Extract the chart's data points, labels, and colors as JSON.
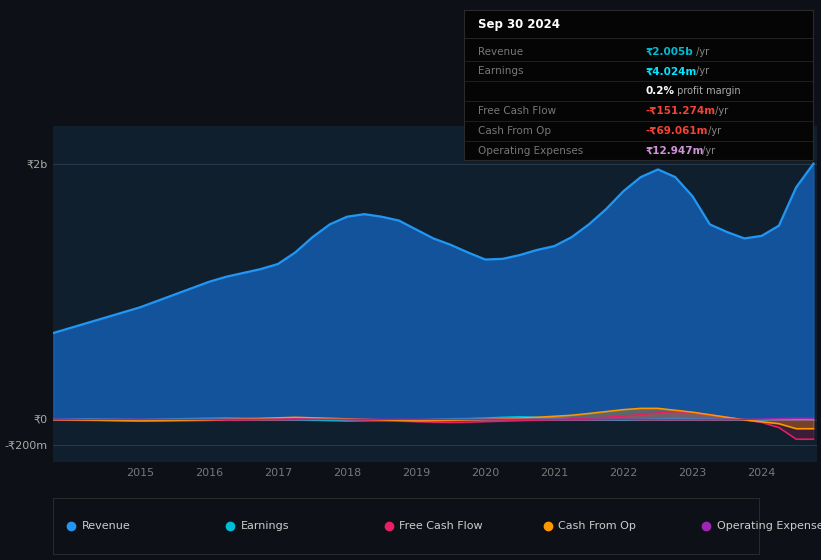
{
  "bg_color": "#0d1117",
  "plot_bg_color": "#0f1f2e",
  "years": [
    2013.75,
    2014.0,
    2014.25,
    2014.5,
    2014.75,
    2015.0,
    2015.25,
    2015.5,
    2015.75,
    2016.0,
    2016.25,
    2016.5,
    2016.75,
    2017.0,
    2017.25,
    2017.5,
    2017.75,
    2018.0,
    2018.25,
    2018.5,
    2018.75,
    2019.0,
    2019.25,
    2019.5,
    2019.75,
    2020.0,
    2020.25,
    2020.5,
    2020.75,
    2021.0,
    2021.25,
    2021.5,
    2021.75,
    2022.0,
    2022.25,
    2022.5,
    2022.75,
    2023.0,
    2023.25,
    2023.5,
    2023.75,
    2024.0,
    2024.25,
    2024.5,
    2024.75
  ],
  "revenue": [
    680,
    720,
    760,
    800,
    840,
    880,
    930,
    980,
    1030,
    1080,
    1120,
    1150,
    1180,
    1220,
    1310,
    1430,
    1530,
    1590,
    1610,
    1590,
    1560,
    1490,
    1420,
    1370,
    1310,
    1255,
    1260,
    1290,
    1330,
    1360,
    1430,
    1530,
    1650,
    1790,
    1900,
    1960,
    1900,
    1750,
    1530,
    1470,
    1420,
    1440,
    1520,
    1820,
    2005
  ],
  "earnings": [
    0,
    5,
    8,
    6,
    4,
    2,
    5,
    8,
    10,
    12,
    14,
    12,
    8,
    5,
    2,
    -2,
    -5,
    -8,
    -6,
    -4,
    -2,
    0,
    4,
    8,
    10,
    14,
    20,
    25,
    20,
    15,
    8,
    4,
    2,
    0,
    4,
    8,
    10,
    8,
    6,
    4,
    2,
    0,
    4.024,
    4.024,
    4.024
  ],
  "free_cash_flow": [
    0,
    0,
    -2,
    -4,
    -6,
    -8,
    -10,
    -8,
    -6,
    -4,
    -2,
    0,
    4,
    8,
    12,
    10,
    6,
    2,
    -2,
    -6,
    -10,
    -14,
    -18,
    -20,
    -18,
    -14,
    -10,
    -6,
    -2,
    2,
    8,
    14,
    20,
    30,
    40,
    55,
    65,
    55,
    40,
    20,
    0,
    -20,
    -60,
    -151.274,
    -151.274
  ],
  "cash_from_op": [
    2,
    0,
    -2,
    -4,
    -6,
    -8,
    -6,
    -4,
    -2,
    0,
    4,
    8,
    12,
    16,
    20,
    16,
    12,
    8,
    4,
    0,
    -4,
    -8,
    -6,
    -4,
    0,
    4,
    8,
    14,
    20,
    28,
    36,
    50,
    65,
    80,
    90,
    90,
    75,
    60,
    40,
    20,
    0,
    -15,
    -30,
    -69.061,
    -69.061
  ],
  "operating_expenses": [
    4,
    4,
    4,
    4,
    4,
    4,
    4,
    4,
    4,
    4,
    4,
    4,
    4,
    4,
    4,
    4,
    4,
    4,
    4,
    4,
    4,
    4,
    4,
    4,
    4,
    4,
    4,
    4,
    4,
    4,
    4,
    4,
    4,
    4,
    4,
    4,
    4,
    4,
    4,
    4,
    4,
    6,
    10,
    12.947,
    12.947
  ],
  "revenue_color": "#2196f3",
  "revenue_fill_color": "#1565c0",
  "earnings_color": "#00bcd4",
  "free_cash_flow_color": "#e91e63",
  "cash_from_op_color": "#ff9800",
  "operating_expenses_color": "#9c27b0",
  "ylim_top": 2300,
  "ylim_bottom": -330,
  "y_label_vals": [
    2000,
    0,
    -200
  ],
  "y_label_texts": [
    "₹2b",
    "₹0",
    "-₹200m"
  ],
  "x_ticks": [
    2015,
    2016,
    2017,
    2018,
    2019,
    2020,
    2021,
    2022,
    2023,
    2024
  ],
  "info_box": {
    "title": "Sep 30 2024",
    "rows": [
      {
        "label": "Revenue",
        "value": "₹2.005b",
        "suffix": " /yr",
        "value_color": "#00bcd4",
        "suffix_color": "#888888",
        "indent": false
      },
      {
        "label": "Earnings",
        "value": "₹4.024m",
        "suffix": " /yr",
        "value_color": "#00e5ff",
        "suffix_color": "#888888",
        "indent": false
      },
      {
        "label": "",
        "value": "0.2%",
        "suffix": " profit margin",
        "value_color": "#ffffff",
        "suffix_color": "#aaaaaa",
        "indent": true
      },
      {
        "label": "Free Cash Flow",
        "value": "-₹151.274m",
        "suffix": " /yr",
        "value_color": "#f44336",
        "suffix_color": "#888888",
        "indent": false
      },
      {
        "label": "Cash From Op",
        "value": "-₹69.061m",
        "suffix": " /yr",
        "value_color": "#f44336",
        "suffix_color": "#888888",
        "indent": false
      },
      {
        "label": "Operating Expenses",
        "value": "₹12.947m",
        "suffix": " /yr",
        "value_color": "#ce93d8",
        "suffix_color": "#888888",
        "indent": false
      }
    ]
  },
  "legend_items": [
    {
      "label": "Revenue",
      "color": "#2196f3"
    },
    {
      "label": "Earnings",
      "color": "#00bcd4"
    },
    {
      "label": "Free Cash Flow",
      "color": "#e91e63"
    },
    {
      "label": "Cash From Op",
      "color": "#ff9800"
    },
    {
      "label": "Operating Expenses",
      "color": "#9c27b0"
    }
  ]
}
